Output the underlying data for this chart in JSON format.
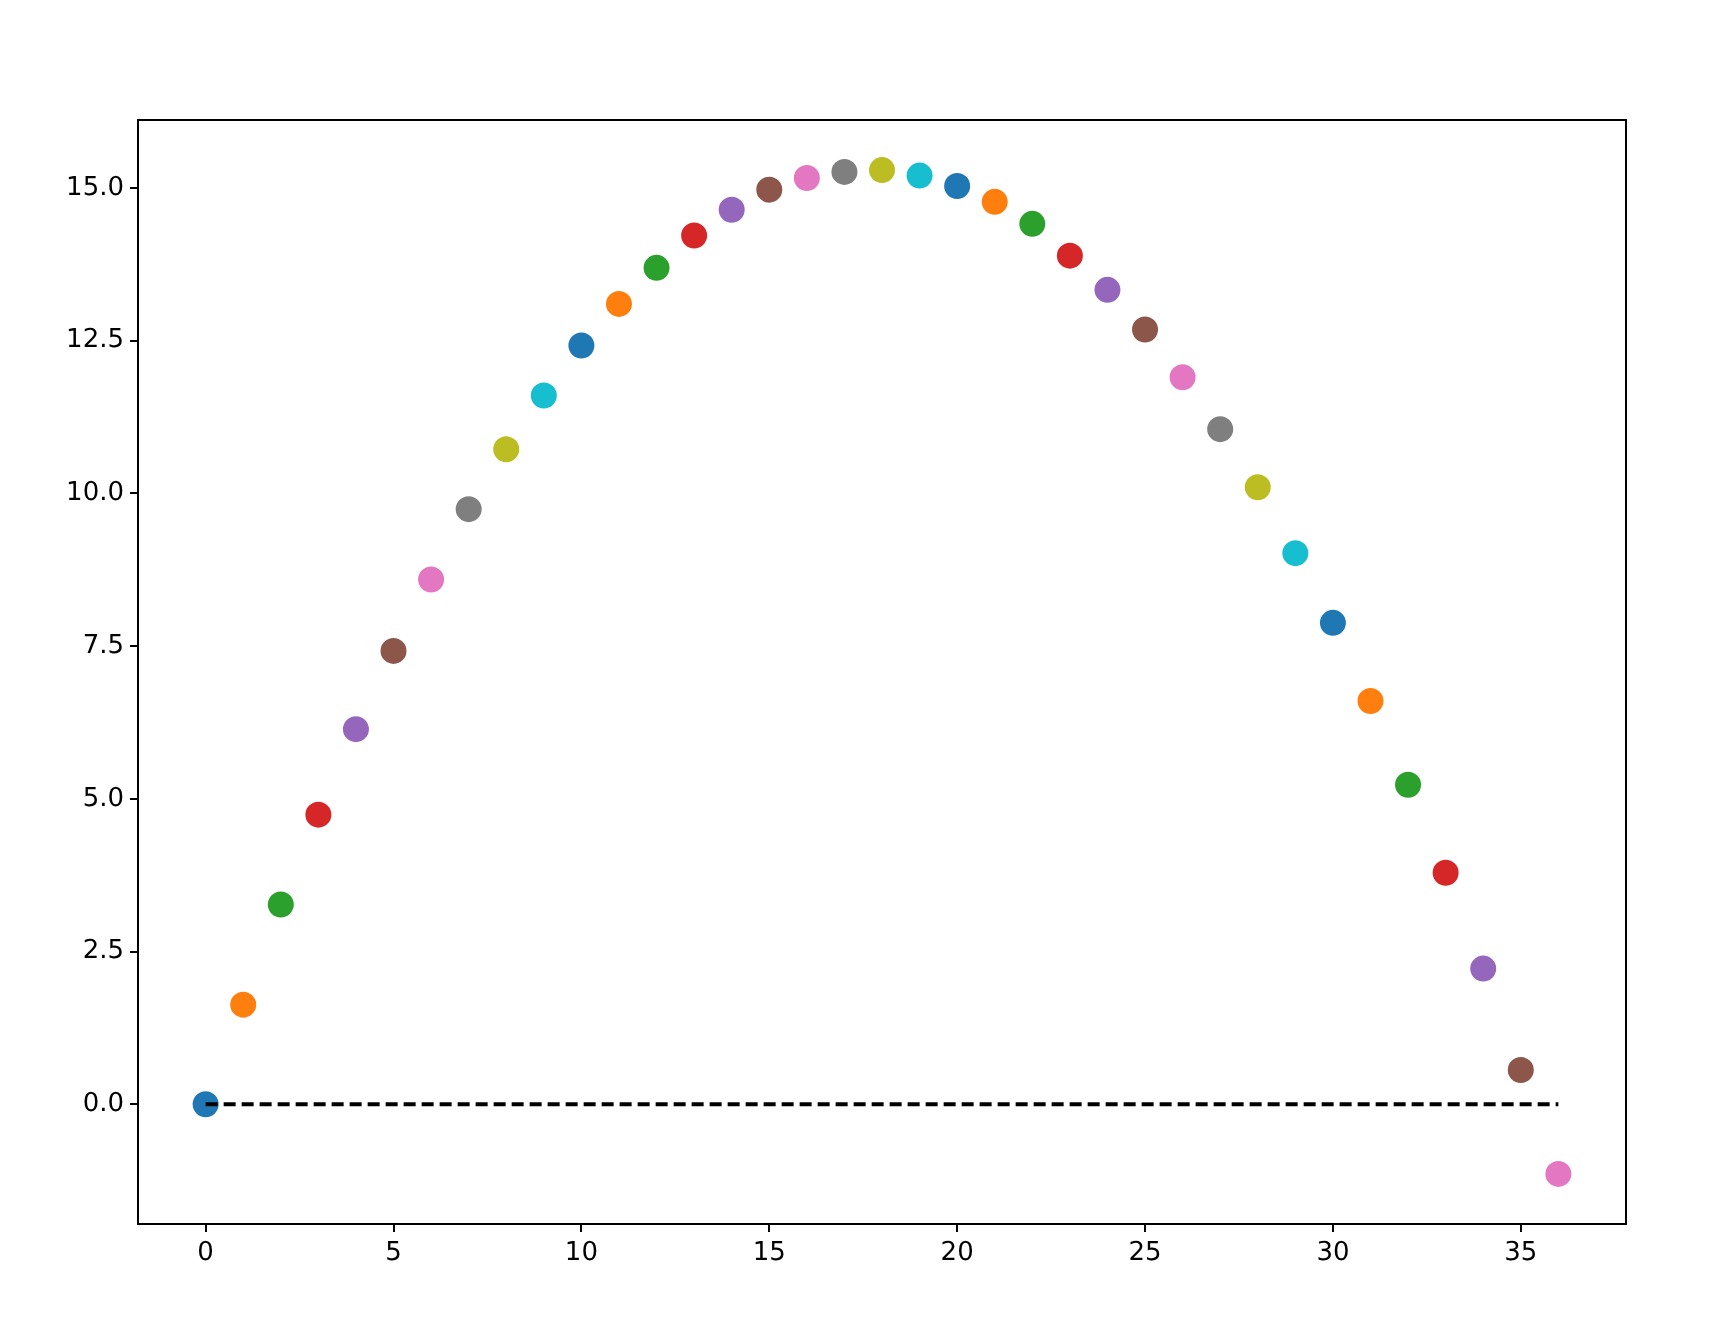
{
  "chart_data": {
    "type": "scatter",
    "x": [
      0,
      1,
      2,
      3,
      4,
      5,
      6,
      7,
      8,
      9,
      10,
      11,
      12,
      13,
      14,
      15,
      16,
      17,
      18,
      19,
      20,
      21,
      22,
      23,
      24,
      25,
      26,
      27,
      28,
      29,
      30,
      31,
      32,
      33,
      34,
      35,
      36
    ],
    "series": [
      {
        "type": "scatter",
        "marker": "circle",
        "values": [
          0,
          1.63,
          3.27,
          4.74,
          6.14,
          7.42,
          8.59,
          9.74,
          10.72,
          11.6,
          12.42,
          13.1,
          13.69,
          14.22,
          14.64,
          14.97,
          15.16,
          15.26,
          15.29,
          15.2,
          15.03,
          14.77,
          14.41,
          13.89,
          13.33,
          12.68,
          11.9,
          11.05,
          10.1,
          9.02,
          7.88,
          6.6,
          5.23,
          3.79,
          2.22,
          0.56,
          -1.14
        ],
        "colors": [
          "#1f77b4",
          "#ff7f0e",
          "#2ca02c",
          "#d62728",
          "#9467bd",
          "#8c564b",
          "#e377c2",
          "#7f7f7f",
          "#bcbd22",
          "#17becf",
          "#1f77b4",
          "#ff7f0e",
          "#2ca02c",
          "#d62728",
          "#9467bd",
          "#8c564b",
          "#e377c2",
          "#7f7f7f",
          "#bcbd22",
          "#17becf",
          "#1f77b4",
          "#ff7f0e",
          "#2ca02c",
          "#d62728",
          "#9467bd",
          "#8c564b",
          "#e377c2",
          "#7f7f7f",
          "#bcbd22",
          "#17becf",
          "#1f77b4",
          "#ff7f0e",
          "#2ca02c",
          "#d62728",
          "#9467bd",
          "#8c564b",
          "#e377c2"
        ]
      },
      {
        "type": "line",
        "x": [
          0,
          36
        ],
        "values": [
          0,
          0
        ],
        "color": "#000000",
        "line_style": "dashed",
        "marker": "none"
      }
    ],
    "xlim": [
      -1.8,
      37.8
    ],
    "xticks": [
      0,
      5,
      10,
      15,
      20,
      25,
      30,
      35
    ],
    "ylim": [
      -1.96,
      16.11
    ],
    "yticks": [
      {
        "value": 0,
        "label": "0.0"
      },
      {
        "value": 2.5,
        "label": "2.5"
      },
      {
        "value": 5,
        "label": "5.0"
      },
      {
        "value": 7.5,
        "label": "7.5"
      },
      {
        "value": 10,
        "label": "10.0"
      },
      {
        "value": 12.5,
        "label": "12.5"
      },
      {
        "value": 15,
        "label": "15.0"
      }
    ],
    "grid": false,
    "legend": false
  }
}
